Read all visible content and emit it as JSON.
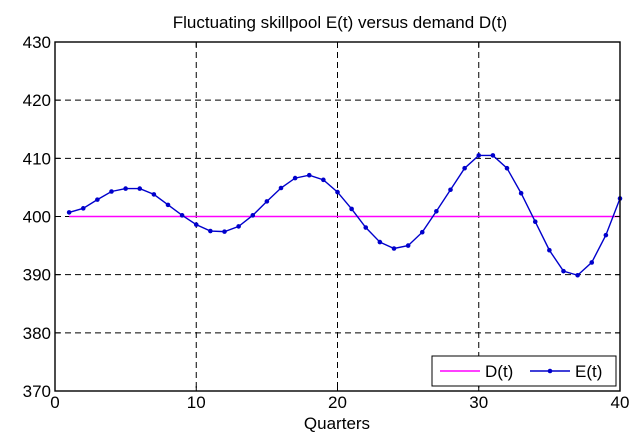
{
  "chart_data": {
    "type": "line",
    "title": "Fluctuating skillpool E(t) versus demand D(t)",
    "xlabel": "Quarters",
    "ylabel": "",
    "xlim": [
      0,
      40
    ],
    "ylim": [
      370,
      430
    ],
    "xticks": [
      "0",
      "10",
      "20",
      "30",
      "40"
    ],
    "yticks": [
      "370",
      "380",
      "390",
      "400",
      "410",
      "420",
      "430"
    ],
    "grid": true,
    "legend_position": "bottom-right",
    "series": [
      {
        "name": "D(t)",
        "color": "#ff00ff",
        "marker": "none",
        "x": [
          1,
          40
        ],
        "values": [
          400,
          400
        ]
      },
      {
        "name": "E(t)",
        "color": "#0000cc",
        "marker": "dot",
        "x": [
          1,
          2,
          3,
          4,
          5,
          6,
          7,
          8,
          9,
          10,
          11,
          12,
          13,
          14,
          15,
          16,
          17,
          18,
          19,
          20,
          21,
          22,
          23,
          24,
          25,
          26,
          27,
          28,
          29,
          30,
          31,
          32,
          33,
          34,
          35,
          36,
          37,
          38,
          39,
          40
        ],
        "values": [
          400.7,
          401.4,
          402.9,
          404.3,
          404.8,
          404.8,
          403.8,
          402.0,
          400.2,
          398.6,
          397.5,
          397.4,
          398.3,
          400.2,
          402.6,
          404.9,
          406.6,
          407.1,
          406.3,
          404.2,
          401.3,
          398.1,
          395.6,
          394.5,
          395.0,
          397.3,
          400.9,
          404.6,
          408.3,
          410.5,
          410.5,
          408.3,
          404.0,
          399.1,
          394.2,
          390.6,
          389.9,
          392.1,
          396.8,
          403.1
        ]
      }
    ]
  }
}
